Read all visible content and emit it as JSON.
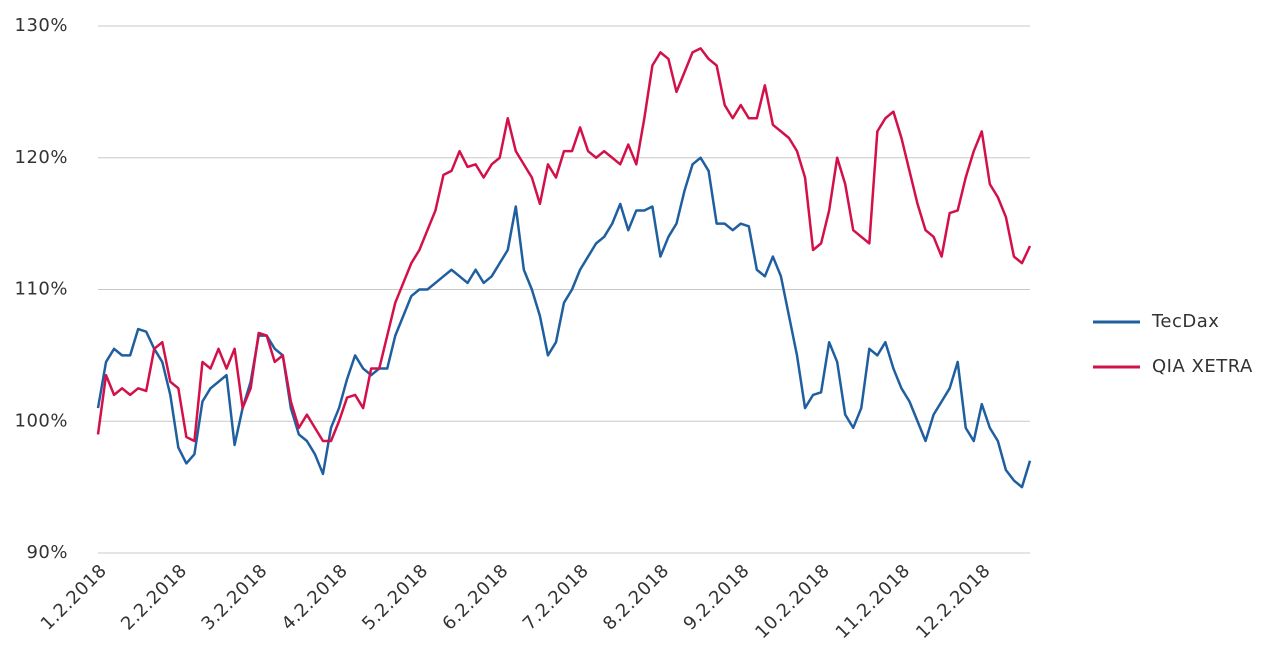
{
  "chart_data": {
    "type": "line",
    "categories": [
      "1.2.2018",
      null,
      null,
      null,
      null,
      null,
      null,
      null,
      null,
      null,
      "2.2.2018",
      null,
      null,
      null,
      null,
      null,
      null,
      null,
      null,
      null,
      "3.2.2018",
      null,
      null,
      null,
      null,
      null,
      null,
      null,
      null,
      null,
      "4.2.2018",
      null,
      null,
      null,
      null,
      null,
      null,
      null,
      null,
      null,
      "5.2.2018",
      null,
      null,
      null,
      null,
      null,
      null,
      null,
      null,
      null,
      "6.2.2018",
      null,
      null,
      null,
      null,
      null,
      null,
      null,
      null,
      null,
      "7.2.2018",
      null,
      null,
      null,
      null,
      null,
      null,
      null,
      null,
      null,
      "8.2.2018",
      null,
      null,
      null,
      null,
      null,
      null,
      null,
      null,
      null,
      "9.2.2018",
      null,
      null,
      null,
      null,
      null,
      null,
      null,
      null,
      null,
      "10.2.2018",
      null,
      null,
      null,
      null,
      null,
      null,
      null,
      null,
      null,
      "11.2.2018",
      null,
      null,
      null,
      null,
      null,
      null,
      null,
      null,
      null,
      "12.2.2018",
      null,
      null,
      null,
      null,
      null,
      null
    ],
    "series": [
      {
        "name": "TecDax",
        "color": "#1f5fa0",
        "values": [
          101,
          104.5,
          105.5,
          105,
          105,
          107,
          106.8,
          105.5,
          104.5,
          102,
          98,
          96.8,
          97.5,
          101.5,
          102.5,
          103,
          103.5,
          98.2,
          101,
          103,
          106.5,
          106.5,
          105.5,
          105,
          101,
          99,
          98.5,
          97.5,
          96,
          99.5,
          101,
          103.2,
          105,
          104,
          103.5,
          104,
          104,
          106.5,
          108,
          109.5,
          110,
          110,
          110.5,
          111,
          111.5,
          111,
          110.5,
          111.5,
          110.5,
          111,
          112,
          113,
          116.3,
          111.5,
          110,
          108,
          105,
          106,
          109,
          110,
          111.5,
          112.5,
          113.5,
          114,
          115,
          116.5,
          114.5,
          116,
          116,
          116.3,
          112.5,
          114,
          115,
          117.5,
          119.5,
          120,
          119,
          115,
          115,
          114.5,
          115,
          114.8,
          111.5,
          111,
          112.5,
          111,
          108,
          105,
          101,
          102,
          102.2,
          106,
          104.5,
          100.5,
          99.5,
          101,
          105.5,
          105,
          106,
          104,
          102.5,
          101.5,
          100,
          98.5,
          100.5,
          101.5,
          102.5,
          104.5,
          99.5,
          98.5,
          101.3,
          99.5,
          98.5,
          96.3,
          95.5,
          95,
          97
        ]
      },
      {
        "name": "QIA XETRA",
        "color": "#d3104a",
        "values": [
          99,
          103.5,
          102,
          102.5,
          102,
          102.5,
          102.3,
          105.5,
          106,
          103,
          102.5,
          98.8,
          98.5,
          104.5,
          104,
          105.5,
          104,
          105.5,
          101,
          102.5,
          106.7,
          106.5,
          104.5,
          105,
          101.5,
          99.5,
          100.5,
          99.5,
          98.5,
          98.5,
          100,
          101.8,
          102,
          101,
          104,
          104,
          106.5,
          109,
          110.5,
          112,
          113,
          114.5,
          116,
          118.7,
          119,
          120.5,
          119.3,
          119.5,
          118.5,
          119.5,
          120,
          123,
          120.5,
          119.5,
          118.5,
          116.5,
          119.5,
          118.5,
          120.5,
          120.5,
          122.3,
          120.5,
          120,
          120.5,
          120,
          119.5,
          121,
          119.5,
          123,
          127,
          128,
          127.5,
          125,
          126.5,
          128,
          128.3,
          127.5,
          127,
          124,
          123,
          124,
          123,
          123,
          125.5,
          122.5,
          122,
          121.5,
          120.5,
          118.5,
          113,
          113.5,
          116,
          120,
          118,
          114.5,
          114,
          113.5,
          122,
          123,
          123.5,
          121.5,
          119,
          116.5,
          114.5,
          114,
          112.5,
          115.8,
          116,
          118.5,
          120.5,
          122,
          118,
          117,
          115.5,
          112.5,
          112,
          113.3
        ]
      }
    ],
    "ylim": [
      90,
      130
    ],
    "yticks": [
      {
        "value": 90,
        "label": "90%"
      },
      {
        "value": 100,
        "label": "100%"
      },
      {
        "value": 110,
        "label": "110%"
      },
      {
        "value": 120,
        "label": "120%"
      },
      {
        "value": 130,
        "label": "130%"
      }
    ],
    "grid": true,
    "legend": "right"
  }
}
